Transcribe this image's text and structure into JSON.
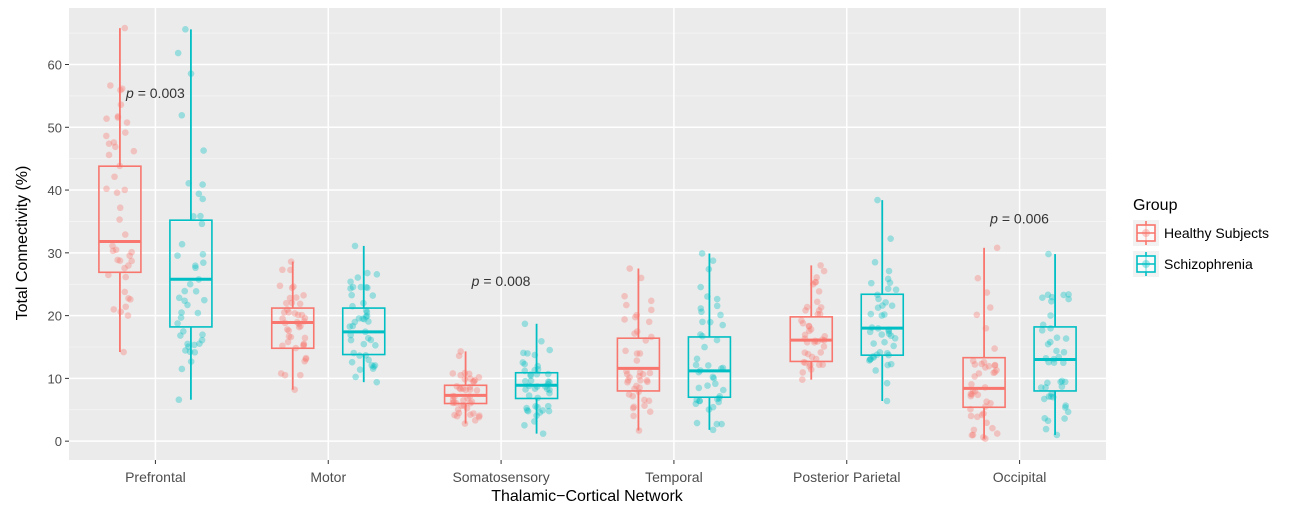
{
  "chart_data": {
    "type": "box",
    "xlabel": "Thalamic−Cortical Network",
    "ylabel": "Total Connectivity (%)",
    "ylim": [
      -3,
      69
    ],
    "yticks": [
      0,
      10,
      20,
      30,
      40,
      50,
      60
    ],
    "grid": true,
    "categories": [
      "Prefrontal",
      "Motor",
      "Somatosensory",
      "Temporal",
      "Posterior Parietal",
      "Occipital"
    ],
    "legend": {
      "title": "Group",
      "position": "right",
      "entries": [
        "Healthy Subjects",
        "Schizophrenia"
      ]
    },
    "series": [
      {
        "name": "Healthy Subjects",
        "color": "#F8766D",
        "boxes": [
          {
            "min": 14.2,
            "q1": 26.9,
            "median": 31.8,
            "q3": 43.8,
            "max": 65.8
          },
          {
            "min": 8.2,
            "q1": 14.8,
            "median": 18.9,
            "q3": 21.2,
            "max": 28.6
          },
          {
            "min": 2.8,
            "q1": 6.0,
            "median": 7.3,
            "q3": 8.9,
            "max": 14.3
          },
          {
            "min": 1.7,
            "q1": 8.0,
            "median": 11.6,
            "q3": 16.4,
            "max": 27.5
          },
          {
            "min": 9.8,
            "q1": 12.7,
            "median": 16.1,
            "q3": 19.8,
            "max": 28.0
          },
          {
            "min": 0.4,
            "q1": 5.4,
            "median": 8.4,
            "q3": 13.3,
            "max": 30.8
          }
        ]
      },
      {
        "name": "Schizophrenia",
        "color": "#00BFC4",
        "boxes": [
          {
            "min": 6.6,
            "q1": 18.2,
            "median": 25.8,
            "q3": 35.2,
            "max": 65.6
          },
          {
            "min": 9.4,
            "q1": 13.8,
            "median": 17.4,
            "q3": 21.2,
            "max": 31.1
          },
          {
            "min": 1.2,
            "q1": 6.8,
            "median": 8.9,
            "q3": 10.9,
            "max": 18.7
          },
          {
            "min": 1.8,
            "q1": 7.0,
            "median": 11.2,
            "q3": 16.6,
            "max": 29.9
          },
          {
            "min": 6.4,
            "q1": 13.7,
            "median": 18.0,
            "q3": 23.4,
            "max": 38.4
          },
          {
            "min": 1.0,
            "q1": 8.0,
            "median": 13.0,
            "q3": 18.2,
            "max": 29.8
          }
        ]
      }
    ],
    "annotations": [
      {
        "category": "Prefrontal",
        "y": 55.5,
        "italic": "p",
        "text": " = 0.003"
      },
      {
        "category": "Somatosensory",
        "y": 25.5,
        "italic": "p",
        "text": " = 0.008"
      },
      {
        "category": "Occipital",
        "y": 35.5,
        "italic": "p",
        "text": " = 0.006"
      }
    ]
  }
}
